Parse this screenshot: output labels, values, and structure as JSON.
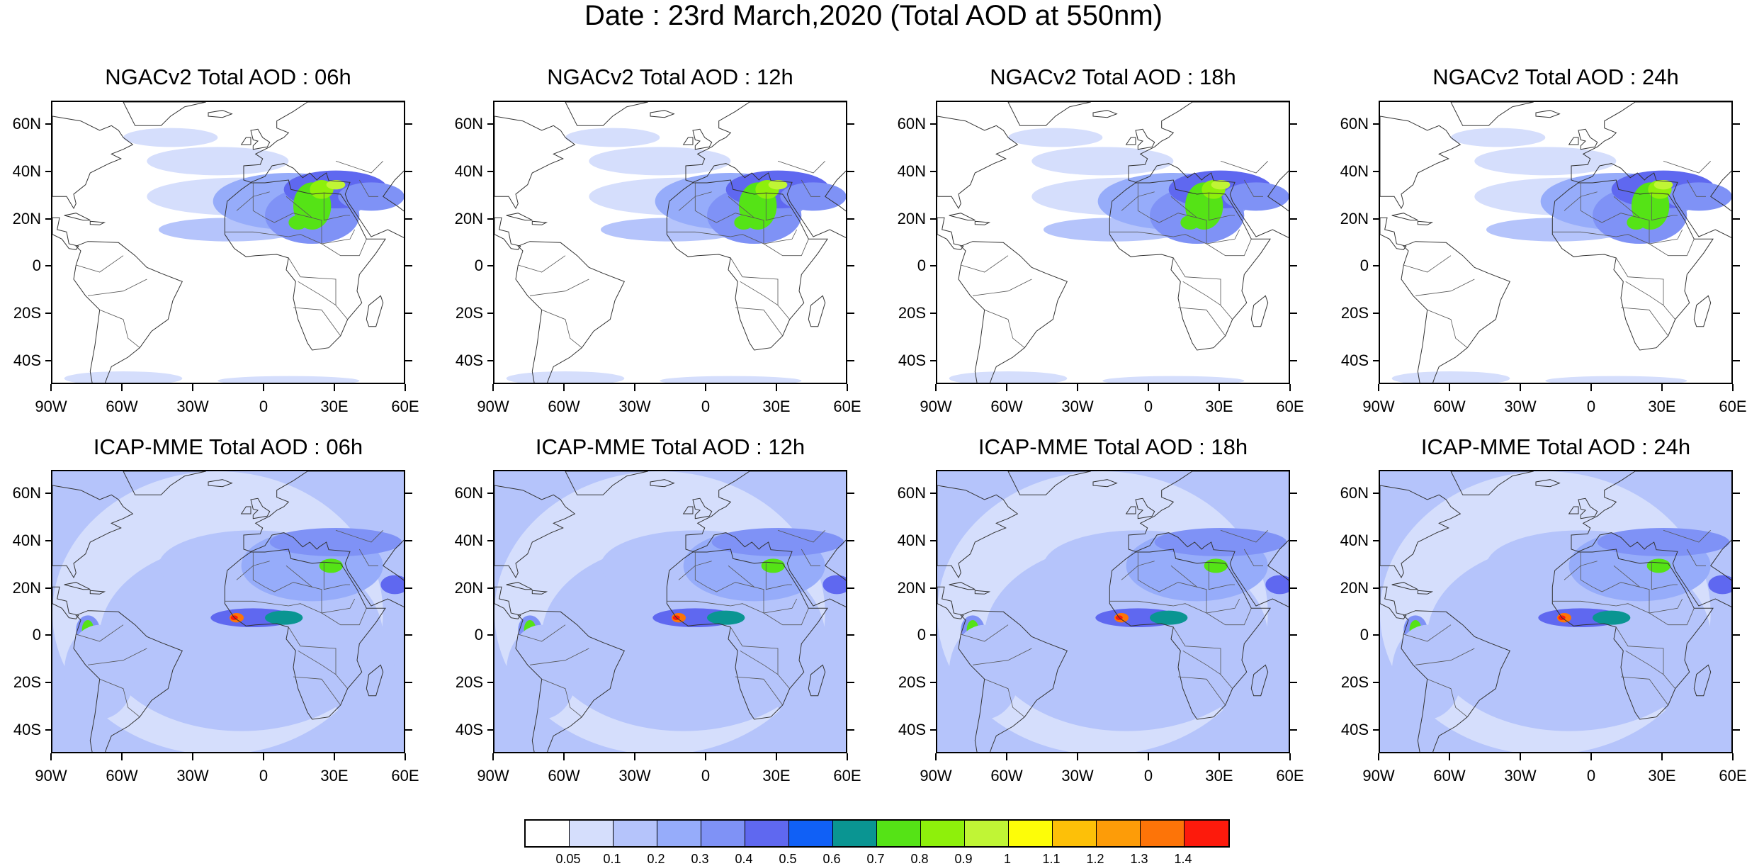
{
  "title": "Date : 23rd March,2020 (Total AOD at 550nm)",
  "panels": [
    {
      "title": "NGACv2 Total AOD : 06h",
      "model": "ngac"
    },
    {
      "title": "NGACv2 Total AOD : 12h",
      "model": "ngac"
    },
    {
      "title": "NGACv2 Total AOD : 18h",
      "model": "ngac"
    },
    {
      "title": "NGACv2 Total AOD : 24h",
      "model": "ngac"
    },
    {
      "title": "ICAP-MME Total AOD : 06h",
      "model": "icap"
    },
    {
      "title": "ICAP-MME Total AOD : 12h",
      "model": "icap"
    },
    {
      "title": "ICAP-MME Total AOD : 18h",
      "model": "icap"
    },
    {
      "title": "ICAP-MME Total AOD : 24h",
      "model": "icap"
    }
  ],
  "lat_labels": [
    "60N",
    "40N",
    "20N",
    "0",
    "20S",
    "40S"
  ],
  "lon_labels": [
    "90W",
    "60W",
    "30W",
    "0",
    "30E",
    "60E"
  ],
  "colorbar": {
    "colors": [
      "#ffffff",
      "#d5defc",
      "#b5c4fb",
      "#96acfa",
      "#7f92f6",
      "#5f68f0",
      "#1060f6",
      "#0a9592",
      "#55e316",
      "#8ef00b",
      "#c0f535",
      "#fdfd08",
      "#fdc008",
      "#fd9c08",
      "#fd7408",
      "#fd1a0c"
    ],
    "labels": [
      "0.05",
      "0.1",
      "0.2",
      "0.3",
      "0.4",
      "0.5",
      "0.6",
      "0.7",
      "0.8",
      "0.9",
      "1",
      "1.1",
      "1.2",
      "1.3",
      "1.4"
    ]
  }
}
